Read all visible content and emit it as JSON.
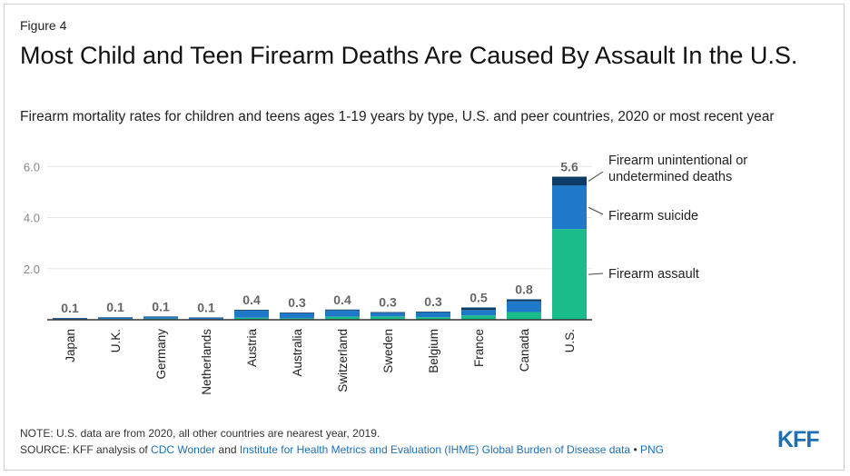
{
  "figure_label": "Figure 4",
  "title": "Most Child and Teen Firearm Deaths Are Caused By Assault In the U.S.",
  "subtitle": "Firearm mortality rates for children and teens ages 1-19 years by type, U.S. and peer countries, 2020 or most recent year",
  "note": "NOTE: U.S. data are from 2020, all other countries are nearest year, 2019.",
  "source": {
    "prefix": "SOURCE: KFF analysis of ",
    "link1": "CDC Wonder",
    "mid": " and ",
    "link2": "Institute for Health Metrics and Evaluation (IHME) Global Burden of Disease data",
    "sep": " • ",
    "link3": "PNG"
  },
  "logo": "KFF",
  "colors": {
    "assault": "#1abc8a",
    "suicide": "#1f78c8",
    "unintentional": "#0d3b66",
    "link": "#1f6fb5"
  },
  "chart_data": {
    "type": "bar",
    "stacked": true,
    "categories": [
      "Japan",
      "U.K.",
      "Germany",
      "Netherlands",
      "Austria",
      "Australia",
      "Switzerland",
      "Sweden",
      "Belgium",
      "France",
      "Canada",
      "U.S."
    ],
    "series": [
      {
        "name": "Firearm assault",
        "values": [
          0.01,
          0.03,
          0.04,
          0.02,
          0.08,
          0.06,
          0.12,
          0.13,
          0.1,
          0.17,
          0.3,
          3.55
        ]
      },
      {
        "name": "Firearm suicide",
        "values": [
          0.04,
          0.05,
          0.07,
          0.05,
          0.28,
          0.19,
          0.25,
          0.14,
          0.19,
          0.21,
          0.42,
          1.7
        ]
      },
      {
        "name": "Firearm unintentional or undetermined deaths",
        "values": [
          0.02,
          0.02,
          0.02,
          0.02,
          0.03,
          0.03,
          0.03,
          0.03,
          0.03,
          0.1,
          0.08,
          0.35
        ]
      }
    ],
    "totals_labels": [
      "0.1",
      "0.1",
      "0.1",
      "0.1",
      "0.4",
      "0.3",
      "0.4",
      "0.3",
      "0.3",
      "0.5",
      "0.8",
      "5.6"
    ],
    "yticks": [
      "2.0",
      "4.0",
      "6.0"
    ],
    "ytick_values": [
      2,
      4,
      6
    ],
    "ylim": [
      0,
      6.4
    ],
    "legend_labels": [
      {
        "key": "unintentional",
        "lines": [
          "Firearm unintentional or",
          "undetermined deaths"
        ]
      },
      {
        "key": "suicide",
        "lines": [
          "Firearm suicide"
        ]
      },
      {
        "key": "assault",
        "lines": [
          "Firearm assault"
        ]
      }
    ],
    "grid": true,
    "legend_position": "right (direct labels)"
  }
}
